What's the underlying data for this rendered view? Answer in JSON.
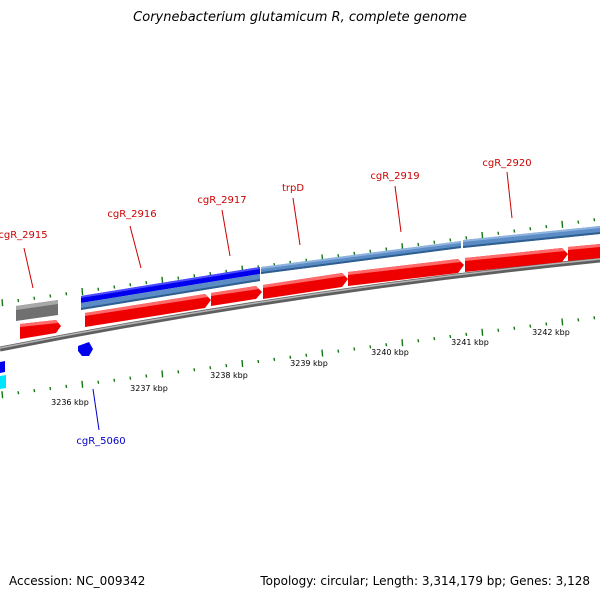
{
  "title": "Corynebacterium glutamicum R, complete genome",
  "footer": {
    "accession": "Accession: NC_009342",
    "summary": "Topology: circular; Length: 3,314,179 bp; Genes: 3,128"
  },
  "colors": {
    "forward_cds": "#ff0000",
    "reverse_cds": "#0000ff",
    "gene_track_forward": "#5b8cc6",
    "gene_track_reverse": "#0000ee",
    "tick": "#117711",
    "backbone": "#8a8a8a",
    "pseudo": "#707070",
    "rna": "#00e5ff",
    "label_forward": "#cc0000",
    "label_reverse": "#0000cc"
  },
  "scale": {
    "labels": [
      "3236 kbp",
      "3237 kbp",
      "3238 kbp",
      "3239 kbp",
      "3240 kbp",
      "3241 kbp",
      "3242 kbp"
    ]
  },
  "genes": [
    {
      "name": "cgR_2915",
      "strand": "forward"
    },
    {
      "name": "cgR_2916",
      "strand": "forward"
    },
    {
      "name": "cgR_2917",
      "strand": "forward"
    },
    {
      "name": "trpD",
      "strand": "forward"
    },
    {
      "name": "cgR_2919",
      "strand": "forward"
    },
    {
      "name": "cgR_2920",
      "strand": "forward"
    },
    {
      "name": "cgR_5060",
      "strand": "reverse"
    }
  ]
}
